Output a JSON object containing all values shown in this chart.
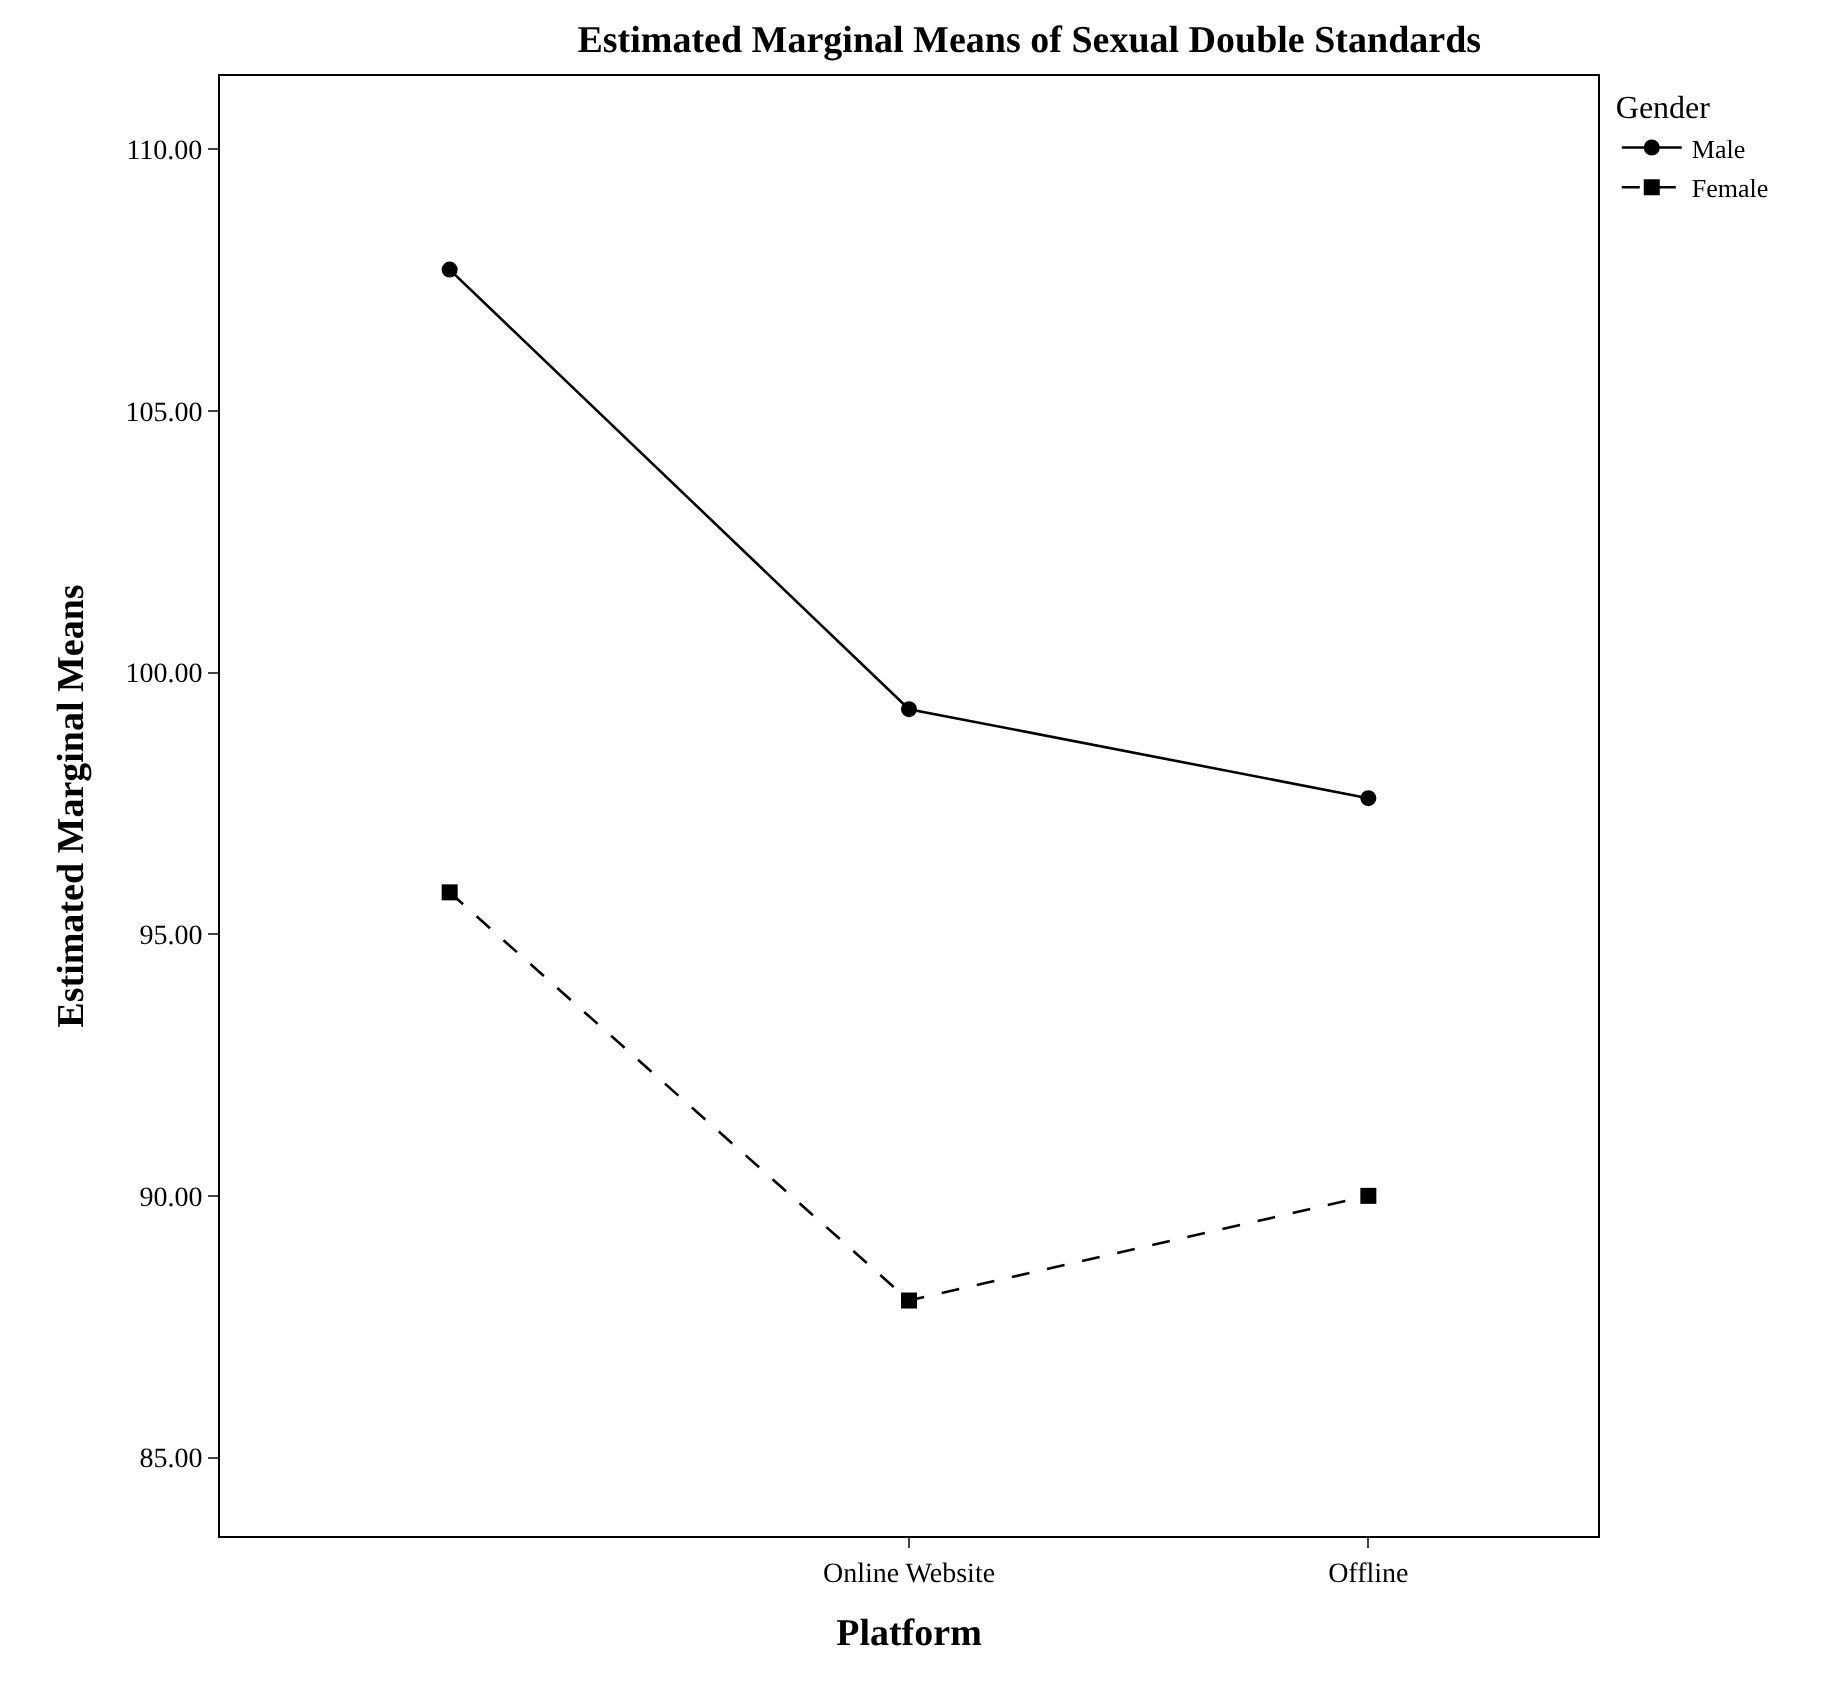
{
  "chart_data": {
    "type": "line",
    "title": "Estimated Marginal Means of Sexual Double Standards",
    "xlabel": "Platform",
    "ylabel": "Estimated Marginal Means",
    "legend_title": "Gender",
    "categories": [
      null,
      "Online Website",
      "Offline"
    ],
    "series": [
      {
        "name": "Male",
        "color": "#000000",
        "values": [
          107.7,
          99.3,
          97.6
        ],
        "marker": "circle",
        "line_style": "solid"
      },
      {
        "name": "Female",
        "color": "#000000",
        "values": [
          95.8,
          88.0,
          90.0
        ],
        "marker": "square",
        "line_style": "dashed"
      }
    ],
    "ylim": [
      83.5,
      111.4
    ],
    "yticks": [
      {
        "value": 85,
        "label": "85.00"
      },
      {
        "value": 90,
        "label": "90.00"
      },
      {
        "value": 95,
        "label": "95.00"
      },
      {
        "value": 100,
        "label": "100.00"
      },
      {
        "value": 105,
        "label": "105.00"
      },
      {
        "value": 110,
        "label": "110.00"
      }
    ],
    "legend": "top right"
  }
}
